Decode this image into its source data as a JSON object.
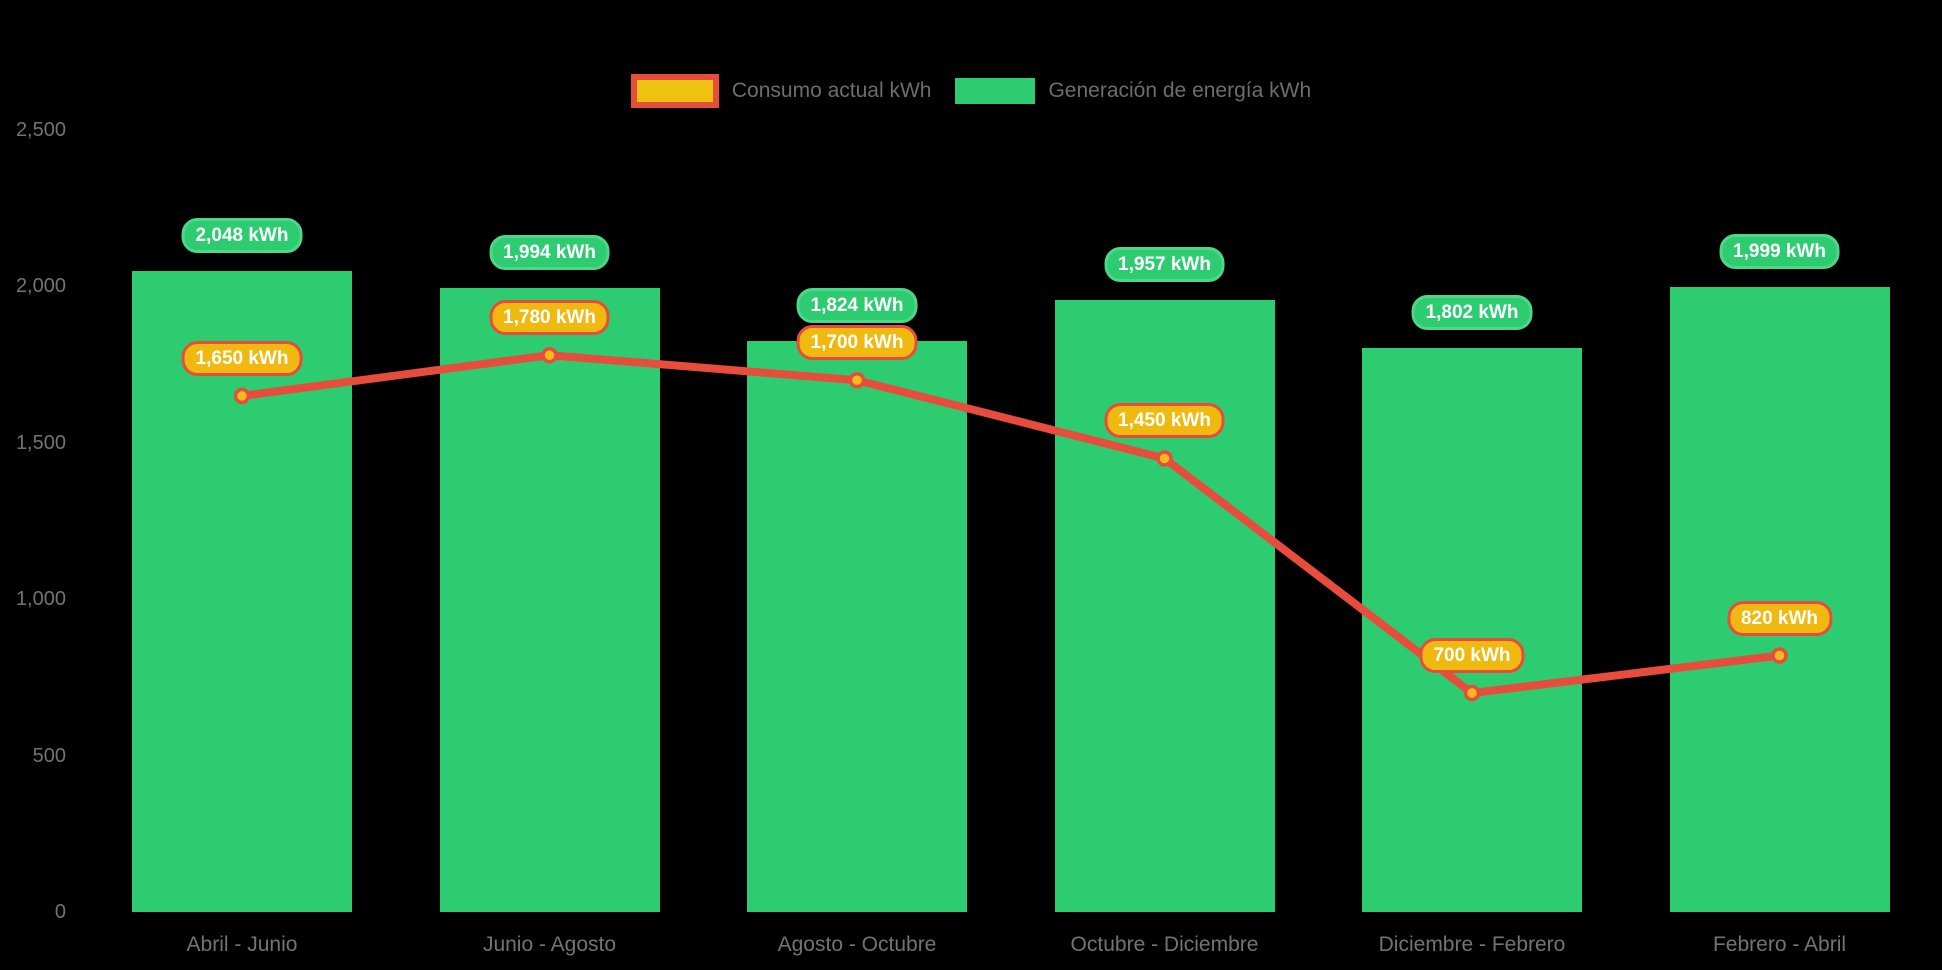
{
  "legend": {
    "items": [
      {
        "label": "Consumo actual kWh",
        "series": "consumption"
      },
      {
        "label": "Generación de energía kWh",
        "series": "generation"
      }
    ]
  },
  "colors": {
    "background": "#000000",
    "bar_green": "#2ecc71",
    "generation_pill_bg": "#2ecc71",
    "generation_pill_border": "#4cd88a",
    "consumption_pill_bg": "#f0b90f",
    "consumption_pill_border": "#e74c3c",
    "line_red": "#e74c3c",
    "dot_fill": "#f5b91a",
    "legend_marker_yellow": "#edc211",
    "legend_marker_border": "#e74c3c",
    "axis_text": "#737373",
    "pill_text": "#ffffff"
  },
  "chart_data": {
    "type": "bar",
    "title": "",
    "xlabel": "",
    "ylabel": "",
    "categories": [
      "Abril - Junio",
      "Junio - Agosto",
      "Agosto - Octubre",
      "Octubre - Diciembre",
      "Diciembre - Febrero",
      "Febrero - Abril"
    ],
    "series": [
      {
        "name": "Generación de energía kWh",
        "type": "bar",
        "values": [
          2048,
          1994,
          1824,
          1957,
          1802,
          1999
        ],
        "labels": [
          "2,048 kWh",
          "1,994 kWh",
          "1,824 kWh",
          "1,957 kWh",
          "1,802 kWh",
          "1,999 kWh"
        ]
      },
      {
        "name": "Consumo actual kWh",
        "type": "line",
        "values": [
          1650,
          1780,
          1700,
          1450,
          700,
          820
        ],
        "labels": [
          "1,650 kWh",
          "1,780 kWh",
          "1,700 kWh",
          "1,450 kWh",
          "700 kWh",
          "820 kWh"
        ]
      }
    ],
    "ylim": [
      0,
      2500
    ],
    "yticks": [
      0,
      500,
      1000,
      1500,
      2000,
      2500
    ],
    "ytick_labels": [
      "0",
      "500",
      "1,000",
      "1,500",
      "2,000",
      "2,500"
    ],
    "grid": false,
    "legend_position": "top"
  }
}
